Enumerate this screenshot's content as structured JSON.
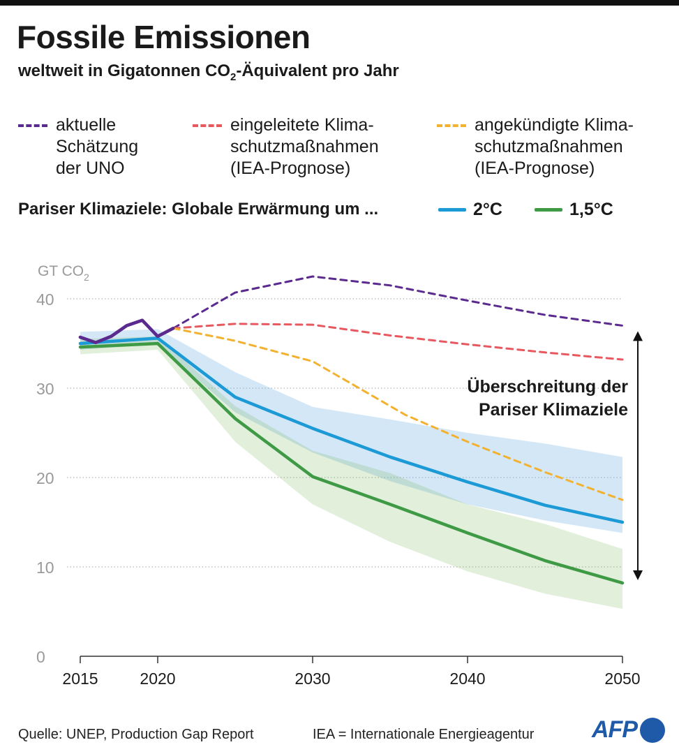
{
  "header": {
    "title": "Fossile Emissionen",
    "subtitle_pre": "weltweit in Gigatonnen CO",
    "subtitle_sub": "2",
    "subtitle_post": "-Äquivalent pro Jahr"
  },
  "legend": {
    "items": [
      {
        "label": "aktuelle\nSchätzung\nder UNO",
        "color": "#5b2a8e"
      },
      {
        "label": "eingeleitete Klima-\nschutzmaßnahmen\n(IEA-Prognose)",
        "color": "#e8585f"
      },
      {
        "label": "angekündigte Klima-\nschutzmaßnahmen\n(IEA-Prognose)",
        "color": "#f2b230"
      }
    ],
    "paris_label": "Pariser Klimaziele: Globale Erwärmung um ...",
    "paris_items": [
      {
        "label": "2°C",
        "color": "#1c9ad6"
      },
      {
        "label": "1,5°C",
        "color": "#3f9a46"
      }
    ]
  },
  "chart_data": {
    "type": "line",
    "ylabel": "GT CO2",
    "ylabel_main": "GT CO",
    "ylabel_sub": "2",
    "xlim": [
      2015,
      2050
    ],
    "ylim": [
      0,
      40
    ],
    "x_ticks": [
      2015,
      2020,
      2030,
      2040,
      2050
    ],
    "y_ticks": [
      0,
      10,
      20,
      30,
      40
    ],
    "grid": "horizontal dotted",
    "series": [
      {
        "name": "aktuelle Schätzung der UNO (historisch)",
        "style": "solid",
        "color": "#5b2a8e",
        "x": [
          2015,
          2016,
          2017,
          2018,
          2019,
          2020,
          2021
        ],
        "y": [
          35.7,
          35.1,
          35.8,
          37.0,
          37.6,
          35.8,
          36.7
        ]
      },
      {
        "name": "aktuelle Schätzung der UNO",
        "style": "dashed",
        "color": "#5b2a8e",
        "x": [
          2021,
          2025,
          2030,
          2035,
          2040,
          2045,
          2050
        ],
        "y": [
          36.7,
          40.7,
          42.5,
          41.5,
          39.8,
          38.2,
          37.0
        ]
      },
      {
        "name": "eingeleitete Klimaschutzmaßnahmen (IEA-Prognose)",
        "style": "dashed",
        "color": "#e8585f",
        "x": [
          2021,
          2025,
          2030,
          2035,
          2040,
          2045,
          2050
        ],
        "y": [
          36.7,
          37.2,
          37.1,
          35.9,
          34.9,
          34.0,
          33.2
        ]
      },
      {
        "name": "angekündigte Klimaschutzmaßnahmen (IEA-Prognose)",
        "style": "dashed",
        "color": "#f2b230",
        "x": [
          2021,
          2025,
          2030,
          2033,
          2036,
          2040,
          2045,
          2050
        ],
        "y": [
          36.7,
          35.3,
          33.0,
          30.0,
          27.0,
          24.0,
          20.6,
          17.5
        ]
      },
      {
        "name": "2°C",
        "style": "solid",
        "color": "#1c9ad6",
        "x": [
          2015,
          2020,
          2025,
          2030,
          2035,
          2040,
          2045,
          2050
        ],
        "y": [
          35.0,
          35.6,
          29.0,
          25.5,
          22.3,
          19.5,
          16.9,
          15.0
        ],
        "band_low": [
          34.3,
          34.9,
          27.3,
          22.8,
          19.6,
          17.0,
          15.2,
          13.8
        ],
        "band_high": [
          36.3,
          36.6,
          31.8,
          27.9,
          26.5,
          25.0,
          23.8,
          22.3
        ]
      },
      {
        "name": "1,5°C",
        "style": "solid",
        "color": "#3f9a46",
        "x": [
          2015,
          2020,
          2025,
          2030,
          2035,
          2040,
          2045,
          2050
        ],
        "y": [
          34.6,
          35.0,
          26.6,
          20.1,
          17.0,
          13.8,
          10.7,
          8.2
        ],
        "band_low": [
          33.8,
          34.3,
          24.0,
          17.0,
          12.8,
          9.5,
          7.0,
          5.3
        ],
        "band_high": [
          35.5,
          35.8,
          28.0,
          23.0,
          20.5,
          17.0,
          14.8,
          12.0
        ]
      }
    ],
    "annotation": "Überschreitung der\nPariser Klimaziele",
    "annotation_arrow": {
      "x": 2050,
      "from": 37.0,
      "to": 8.2
    }
  },
  "footer": {
    "source": "Quelle: UNEP, Production Gap Report",
    "note": "IEA = Internationale Energieagentur",
    "logo": "AFP"
  }
}
